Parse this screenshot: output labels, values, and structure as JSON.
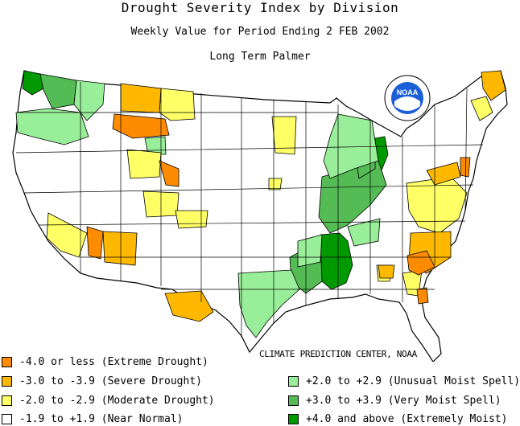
{
  "header": {
    "title": "Drought Severity Index by Division",
    "subtitle": "Weekly Value for Period Ending  2 FEB 2002",
    "index_name": "Long Term Palmer"
  },
  "logo": {
    "text": "NOAA",
    "icon": "noaa-seal-icon"
  },
  "credit": "CLIMATE PREDICTION CENTER, NOAA",
  "colors": {
    "extreme_drought": "#ff8c00",
    "severe_drought": "#ffb800",
    "moderate_drought": "#ffff66",
    "near_normal": "#ffffff",
    "unusual_moist": "#99ee99",
    "very_moist": "#55bb55",
    "extremely_moist": "#009900",
    "border": "#000000"
  },
  "legend": {
    "left": [
      {
        "label": "-4.0 or less (Extreme Drought)",
        "color": "#ff8c00"
      },
      {
        "label": "-3.0 to -3.9 (Severe Drought)",
        "color": "#ffb800"
      },
      {
        "label": "-2.0 to -2.9 (Moderate Drought)",
        "color": "#ffff66"
      },
      {
        "label": "-1.9 to +1.9 (Near Normal)",
        "color": "#ffffff"
      }
    ],
    "right": [
      {
        "label": "+2.0 to +2.9 (Unusual Moist Spell)",
        "color": "#99ee99"
      },
      {
        "label": "+3.0 to +3.9 (Very Moist Spell)",
        "color": "#55bb55"
      },
      {
        "label": "+4.0 and above (Extremely Moist)",
        "color": "#009900"
      }
    ]
  }
}
